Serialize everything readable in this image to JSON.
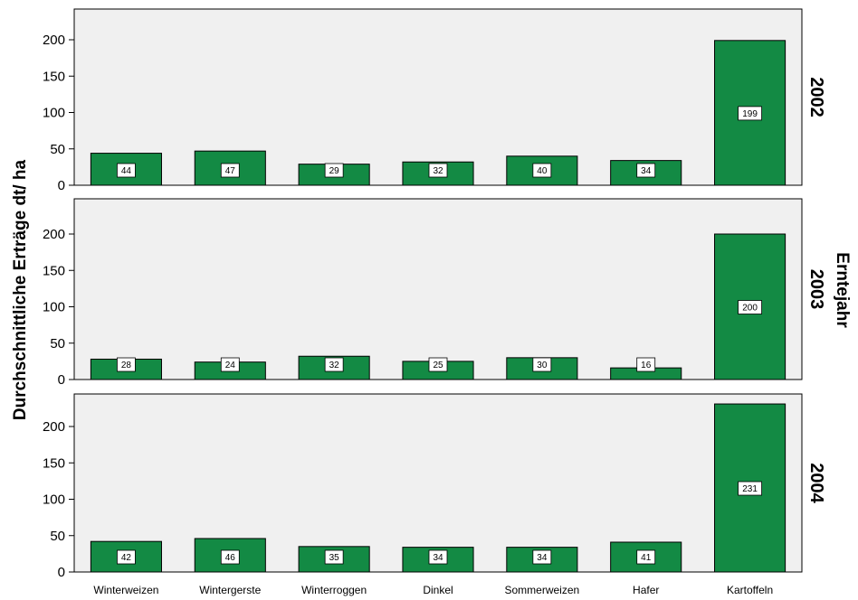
{
  "chart_data": {
    "type": "bar",
    "ylabel": "Durchschnittliche Erträge dt/ ha",
    "facet_label": "Erntejahr",
    "categories": [
      "Winterweizen",
      "Wintergerste",
      "Winterroggen",
      "Dinkel",
      "Sommerweizen",
      "Hafer",
      "Kartoffeln"
    ],
    "ylim": [
      0,
      240
    ],
    "yticks": [
      0,
      50,
      100,
      150,
      200
    ],
    "bar_color": "#138a44",
    "panel_background": "#f0f0f0",
    "panels": [
      {
        "label": "2002",
        "values": [
          44,
          47,
          29,
          32,
          40,
          34,
          199
        ]
      },
      {
        "label": "2003",
        "values": [
          28,
          24,
          32,
          25,
          30,
          16,
          200
        ]
      },
      {
        "label": "2004",
        "values": [
          42,
          46,
          35,
          34,
          34,
          41,
          231
        ]
      }
    ]
  }
}
